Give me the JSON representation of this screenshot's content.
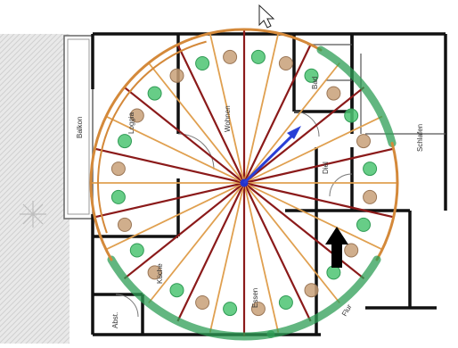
{
  "rooms": [
    {
      "id": "balkon",
      "label": "Balkon"
    },
    {
      "id": "loggia",
      "label": "Loggia"
    },
    {
      "id": "wohnen",
      "label": "Wohnen"
    },
    {
      "id": "bad",
      "label": "Bad"
    },
    {
      "id": "diel",
      "label": "Diel"
    },
    {
      "id": "schlafen",
      "label": "Schlafen"
    },
    {
      "id": "kueche",
      "label": "Küche"
    },
    {
      "id": "essen",
      "label": "Essen"
    },
    {
      "id": "abst",
      "label": "Abst."
    },
    {
      "id": "flur",
      "label": "Flur"
    }
  ],
  "colors": {
    "ray_dark": "#8b1a1a",
    "ray_light": "#e0a050",
    "arc_orange": "#d4893a",
    "arc_green": "#2e9e55",
    "dot_green": "#4cc472",
    "dot_tan": "#c8a078",
    "wall": "#111111",
    "center": "#2233cc",
    "arrow_blue": "#2a3fd6",
    "arrow_black": "#000000",
    "texture": "#d7d7d7"
  },
  "icons": {
    "cursor": "mouse-cursor-icon",
    "arrow_up": "black-arrow-up-icon",
    "direction_arrow": "blue-direction-arrow-icon"
  }
}
